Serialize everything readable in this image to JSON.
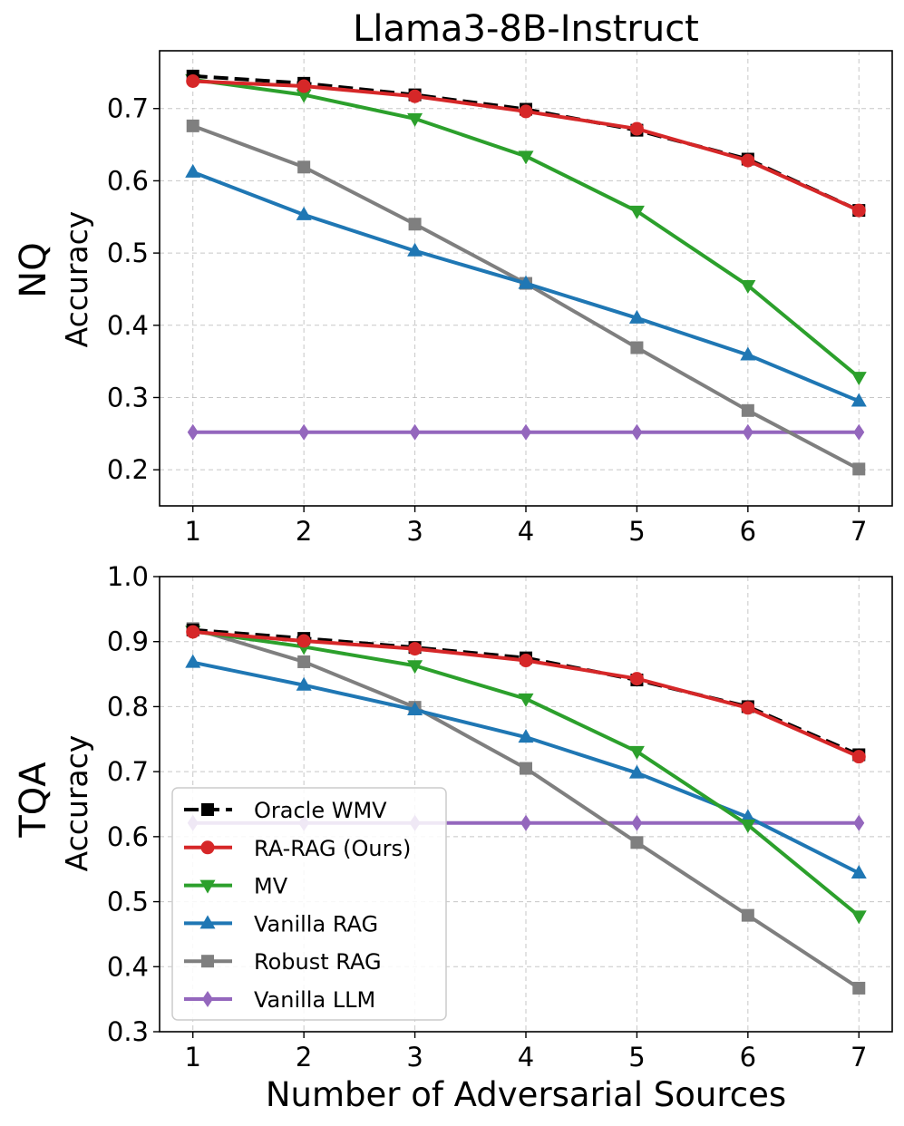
{
  "figure": {
    "title": "Llama3-8B-Instruct",
    "xlabel": "Number of Adversarial Sources"
  },
  "legend": [
    {
      "name": "Oracle WMV",
      "color": "#000000",
      "marker": "square",
      "dashed": true
    },
    {
      "name": "RA-RAG (Ours)",
      "color": "#d62728",
      "marker": "circle",
      "dashed": false
    },
    {
      "name": "MV",
      "color": "#2ca02c",
      "marker": "triangle-down",
      "dashed": false
    },
    {
      "name": "Vanilla RAG",
      "color": "#1f77b4",
      "marker": "triangle-up",
      "dashed": false
    },
    {
      "name": "Robust RAG",
      "color": "#7f7f7f",
      "marker": "square",
      "dashed": false
    },
    {
      "name": "Vanilla LLM",
      "color": "#9467bd",
      "marker": "diamond",
      "dashed": false
    }
  ],
  "chart_data": [
    {
      "type": "line",
      "row_label": "NQ",
      "ylabel": "Accuracy",
      "xlabel": "",
      "x": [
        1,
        2,
        3,
        4,
        5,
        6,
        7
      ],
      "xticks": [
        "1",
        "2",
        "3",
        "4",
        "5",
        "6",
        "7"
      ],
      "xlim": [
        0.7,
        7.3
      ],
      "ylim": [
        0.15,
        0.78
      ],
      "yticks": [
        "0.2",
        "0.3",
        "0.4",
        "0.5",
        "0.6",
        "0.7"
      ],
      "grid": true,
      "series": [
        {
          "name": "Vanilla LLM",
          "values": [
            0.252,
            0.252,
            0.252,
            0.252,
            0.252,
            0.252,
            0.252
          ]
        },
        {
          "name": "Robust RAG",
          "values": [
            0.676,
            0.619,
            0.54,
            0.458,
            0.369,
            0.282,
            0.201
          ]
        },
        {
          "name": "Vanilla RAG",
          "values": [
            0.612,
            0.553,
            0.503,
            0.458,
            0.41,
            0.359,
            0.295
          ]
        },
        {
          "name": "MV",
          "values": [
            0.74,
            0.719,
            0.686,
            0.634,
            0.558,
            0.455,
            0.328
          ]
        },
        {
          "name": "Oracle WMV",
          "values": [
            0.745,
            0.735,
            0.719,
            0.699,
            0.67,
            0.63,
            0.559
          ]
        },
        {
          "name": "RA-RAG (Ours)",
          "values": [
            0.738,
            0.731,
            0.717,
            0.696,
            0.672,
            0.628,
            0.559
          ]
        }
      ]
    },
    {
      "type": "line",
      "row_label": "TQA",
      "ylabel": "Accuracy",
      "xlabel": "Number of Adversarial Sources",
      "x": [
        1,
        2,
        3,
        4,
        5,
        6,
        7
      ],
      "xticks": [
        "1",
        "2",
        "3",
        "4",
        "5",
        "6",
        "7"
      ],
      "xlim": [
        0.7,
        7.3
      ],
      "ylim": [
        0.3,
        1.0
      ],
      "yticks": [
        "0.3",
        "0.4",
        "0.5",
        "0.6",
        "0.7",
        "0.8",
        "0.9",
        "1.0"
      ],
      "grid": true,
      "legend_position": "lower-left",
      "series": [
        {
          "name": "Vanilla LLM",
          "values": [
            0.621,
            0.621,
            0.621,
            0.621,
            0.621,
            0.621,
            0.621
          ]
        },
        {
          "name": "Robust RAG",
          "values": [
            0.92,
            0.869,
            0.799,
            0.705,
            0.591,
            0.479,
            0.367
          ]
        },
        {
          "name": "Vanilla RAG",
          "values": [
            0.868,
            0.833,
            0.795,
            0.753,
            0.698,
            0.63,
            0.544
          ]
        },
        {
          "name": "MV",
          "values": [
            0.916,
            0.892,
            0.863,
            0.812,
            0.731,
            0.618,
            0.478
          ]
        },
        {
          "name": "Oracle WMV",
          "values": [
            0.918,
            0.905,
            0.891,
            0.875,
            0.841,
            0.8,
            0.726
          ]
        },
        {
          "name": "RA-RAG (Ours)",
          "values": [
            0.915,
            0.901,
            0.889,
            0.871,
            0.843,
            0.798,
            0.723
          ]
        }
      ]
    }
  ]
}
